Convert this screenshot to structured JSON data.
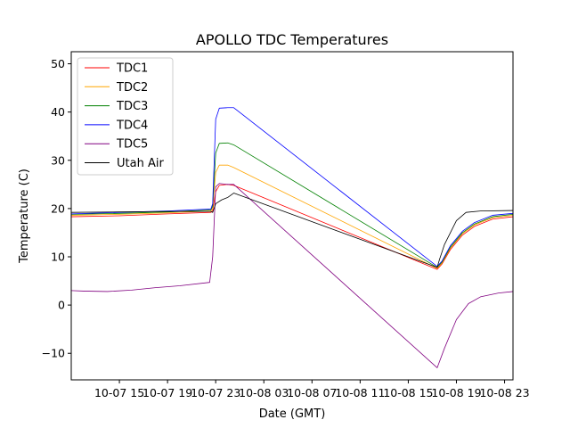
{
  "chart_data": {
    "type": "line",
    "title": "APOLLO TDC Temperatures",
    "xlabel": "Date (GMT)",
    "ylabel": "Temperature (C)",
    "xunit": "hours since 2018-10-07 11:00 GMT",
    "xlim": [
      0,
      36.7
    ],
    "ylim": [
      -15.5,
      52.5
    ],
    "xticks": [
      {
        "value": 4,
        "label": "10-07 15"
      },
      {
        "value": 8,
        "label": "10-07 19"
      },
      {
        "value": 12,
        "label": "10-07 23"
      },
      {
        "value": 16,
        "label": "10-08 03"
      },
      {
        "value": 20,
        "label": "10-08 07"
      },
      {
        "value": 24,
        "label": "10-08 11"
      },
      {
        "value": 28,
        "label": "10-08 15"
      },
      {
        "value": 32,
        "label": "10-08 19"
      },
      {
        "value": 36,
        "label": "10-08 23"
      }
    ],
    "yticks": [
      {
        "value": -10,
        "label": "−10"
      },
      {
        "value": 0,
        "label": "0"
      },
      {
        "value": 10,
        "label": "10"
      },
      {
        "value": 20,
        "label": "20"
      },
      {
        "value": 30,
        "label": "30"
      },
      {
        "value": 40,
        "label": "40"
      },
      {
        "value": 50,
        "label": "50"
      }
    ],
    "legend_position": "top-left",
    "series": [
      {
        "name": "TDC1",
        "color": "#ff0000",
        "points": [
          [
            0,
            18.3
          ],
          [
            4,
            18.5
          ],
          [
            8,
            18.9
          ],
          [
            11.6,
            19.2
          ],
          [
            11.75,
            19.5
          ],
          [
            12.0,
            23.5
          ],
          [
            12.3,
            24.8
          ],
          [
            13,
            25.0
          ],
          [
            13.5,
            24.8
          ],
          [
            30.4,
            7.4
          ],
          [
            30.8,
            8.5
          ],
          [
            31.5,
            11.5
          ],
          [
            32.5,
            14.5
          ],
          [
            33.5,
            16.3
          ],
          [
            35,
            17.8
          ],
          [
            36.7,
            18.3
          ]
        ]
      },
      {
        "name": "TDC2",
        "color": "#ffa500",
        "points": [
          [
            0,
            18.6
          ],
          [
            4,
            18.8
          ],
          [
            8,
            19.1
          ],
          [
            11.6,
            19.5
          ],
          [
            11.75,
            20.0
          ],
          [
            12.0,
            27.5
          ],
          [
            12.3,
            29.0
          ],
          [
            13,
            29.0
          ],
          [
            13.5,
            28.5
          ],
          [
            30.4,
            7.6
          ],
          [
            30.8,
            8.7
          ],
          [
            31.5,
            11.8
          ],
          [
            32.5,
            14.8
          ],
          [
            33.5,
            16.6
          ],
          [
            35,
            18.1
          ],
          [
            36.7,
            18.6
          ]
        ]
      },
      {
        "name": "TDC3",
        "color": "#008000",
        "points": [
          [
            0,
            18.8
          ],
          [
            4,
            19.0
          ],
          [
            8,
            19.3
          ],
          [
            11.6,
            19.7
          ],
          [
            11.75,
            20.5
          ],
          [
            12.0,
            31.5
          ],
          [
            12.3,
            33.5
          ],
          [
            13,
            33.6
          ],
          [
            13.5,
            33.2
          ],
          [
            30.4,
            7.8
          ],
          [
            30.8,
            8.9
          ],
          [
            31.5,
            12.0
          ],
          [
            32.5,
            15.0
          ],
          [
            33.5,
            16.8
          ],
          [
            35,
            18.3
          ],
          [
            36.7,
            18.8
          ]
        ]
      },
      {
        "name": "TDC4",
        "color": "#0000ff",
        "points": [
          [
            0,
            18.9
          ],
          [
            4,
            19.2
          ],
          [
            8,
            19.5
          ],
          [
            11.6,
            19.9
          ],
          [
            11.75,
            21.0
          ],
          [
            12.0,
            38.5
          ],
          [
            12.3,
            40.8
          ],
          [
            13,
            40.9
          ],
          [
            13.5,
            40.9
          ],
          [
            30.4,
            8.0
          ],
          [
            30.8,
            9.1
          ],
          [
            31.5,
            12.3
          ],
          [
            32.5,
            15.3
          ],
          [
            33.5,
            17.1
          ],
          [
            35,
            18.6
          ],
          [
            36.7,
            19.0
          ]
        ]
      },
      {
        "name": "TDC5",
        "color": "#800080",
        "points": [
          [
            0,
            3.0
          ],
          [
            1,
            2.9
          ],
          [
            3,
            2.8
          ],
          [
            5,
            3.1
          ],
          [
            7,
            3.6
          ],
          [
            9,
            4.0
          ],
          [
            11.5,
            4.7
          ],
          [
            11.75,
            10.0
          ],
          [
            12.0,
            24.5
          ],
          [
            12.3,
            25.2
          ],
          [
            13,
            25.0
          ],
          [
            13.5,
            25.0
          ],
          [
            30.4,
            -13.0
          ],
          [
            31.0,
            -9.0
          ],
          [
            32,
            -3.0
          ],
          [
            33,
            0.3
          ],
          [
            34,
            1.7
          ],
          [
            35.5,
            2.5
          ],
          [
            36.7,
            2.8
          ]
        ]
      },
      {
        "name": "Utah Air",
        "color": "#000000",
        "points": [
          [
            0,
            19.2
          ],
          [
            4,
            19.3
          ],
          [
            8,
            19.4
          ],
          [
            11.6,
            19.4
          ],
          [
            11.75,
            19.2
          ],
          [
            12.0,
            21.0
          ],
          [
            12.5,
            21.8
          ],
          [
            13,
            22.3
          ],
          [
            13.5,
            23.2
          ],
          [
            30.4,
            7.8
          ],
          [
            30.6,
            9.5
          ],
          [
            31,
            12.5
          ],
          [
            31.5,
            15.0
          ],
          [
            32,
            17.5
          ],
          [
            32.8,
            19.2
          ],
          [
            34,
            19.5
          ],
          [
            36.7,
            19.6
          ]
        ]
      }
    ]
  }
}
